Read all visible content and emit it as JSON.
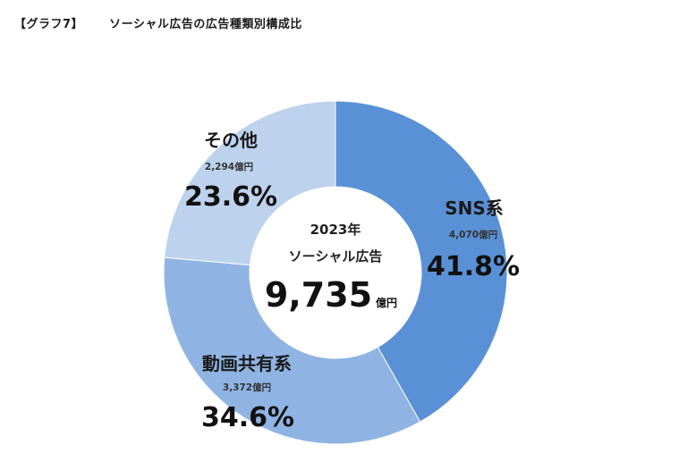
{
  "header": {
    "label": "【グラフ7】",
    "title": "ソーシャル広告の広告種類別構成比"
  },
  "chart_data": {
    "type": "pie",
    "variant": "donut",
    "title": "ソーシャル広告の広告種類別構成比",
    "center": {
      "year_label": "2023年",
      "name_label": "ソーシャル広告",
      "total": "9,735",
      "unit": "億円"
    },
    "slices": [
      {
        "name": "SNS系",
        "amount": "4,070億円",
        "value": 41.8,
        "pct_label": "41.8%",
        "color": "#5a91d6"
      },
      {
        "name": "動画共有系",
        "amount": "3,372億円",
        "value": 34.6,
        "pct_label": "34.6%",
        "color": "#8fb4e3"
      },
      {
        "name": "その他",
        "amount": "2,294億円",
        "value": 23.6,
        "pct_label": "23.6%",
        "color": "#bdd2ec"
      }
    ]
  }
}
